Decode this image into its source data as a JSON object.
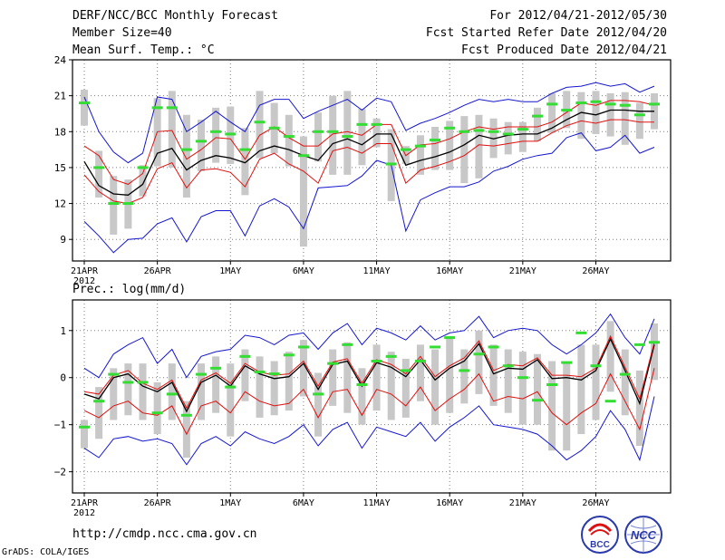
{
  "header": {
    "left": [
      "DERF/NCC/BCC Monthly Forecast",
      "Member Size=40",
      "Mean Surf. Temp.: °C"
    ],
    "right": [
      "For 2012/04/21-2012/05/30",
      "Fcst Started Refer Date 2012/04/20",
      "Fcst Produced Date 2012/04/21"
    ]
  },
  "footer": {
    "url": "http://cmdp.ncc.cma.gov.cn",
    "grads": "GrADS: COLA/IGES",
    "logo_bcc": "BCC",
    "logo_ncc": "NCC"
  },
  "colors": {
    "frame": "#000000",
    "ensemble_mean": "#000000",
    "spread_red": "#e01010",
    "envelope_blue": "#1515d0",
    "box": "#c8c8c8",
    "median": "#33dd33",
    "grid": "#808080"
  },
  "chart_data": [
    {
      "type": "line",
      "title": "Mean Surf. Temp.: °C",
      "days": 40,
      "x_tick_days": [
        1,
        6,
        11,
        16,
        21,
        26,
        31,
        36
      ],
      "x_tick_labels": [
        "21APR",
        "26APR",
        "1MAY",
        "6MAY",
        "11MAY",
        "16MAY",
        "21MAY",
        "26MAY"
      ],
      "x_sub_label": "2012",
      "ylim": [
        7.2,
        24
      ],
      "yticks": [
        9,
        12,
        15,
        18,
        21,
        24
      ],
      "ytick_labels": [
        "9",
        "12",
        "15",
        "18",
        "21",
        "24"
      ],
      "series": [
        {
          "name": "ensemble_mean",
          "values": [
            15.5,
            13.5,
            12.8,
            12.7,
            13.6,
            16.2,
            16.6,
            14.8,
            15.6,
            16.0,
            15.8,
            15.4,
            16.4,
            16.8,
            16.5,
            16.0,
            15.6,
            17.0,
            17.4,
            16.9,
            17.8,
            17.8,
            15.2,
            15.6,
            15.9,
            16.3,
            16.9,
            17.7,
            17.4,
            17.7,
            17.8,
            17.8,
            18.3,
            19.0,
            19.6,
            19.4,
            19.8,
            19.8,
            19.7,
            19.7
          ]
        },
        {
          "name": "upper_spread",
          "values": [
            16.8,
            16.0,
            14.0,
            13.6,
            14.5,
            18.0,
            18.1,
            15.7,
            16.5,
            17.5,
            17.4,
            15.7,
            17.7,
            18.4,
            17.5,
            16.8,
            16.8,
            17.8,
            18.0,
            17.7,
            18.6,
            18.6,
            16.0,
            16.9,
            17.0,
            17.4,
            18.0,
            18.4,
            18.2,
            18.4,
            18.4,
            18.4,
            18.8,
            19.6,
            20.4,
            20.2,
            20.6,
            20.6,
            20.5,
            20.2
          ]
        },
        {
          "name": "lower_spread",
          "values": [
            14.4,
            13.0,
            12.2,
            12.0,
            12.5,
            14.9,
            15.4,
            13.3,
            14.8,
            14.9,
            14.6,
            13.4,
            15.7,
            16.2,
            15.3,
            14.7,
            13.7,
            16.4,
            16.7,
            16.2,
            17.0,
            17.0,
            13.7,
            14.8,
            15.1,
            15.5,
            16.0,
            16.9,
            16.8,
            17.0,
            17.2,
            17.2,
            17.9,
            18.5,
            18.9,
            18.7,
            19.0,
            19.0,
            18.8,
            18.8
          ]
        },
        {
          "name": "max_envelope",
          "values": [
            20.9,
            18.0,
            16.3,
            15.4,
            16.2,
            20.9,
            20.7,
            18.0,
            18.8,
            19.7,
            18.8,
            18.0,
            20.2,
            20.7,
            20.7,
            19.1,
            19.7,
            20.2,
            20.7,
            19.8,
            20.8,
            20.5,
            18.1,
            18.7,
            19.1,
            19.6,
            20.2,
            20.7,
            20.5,
            20.7,
            20.5,
            20.5,
            21.2,
            21.7,
            21.8,
            22.1,
            21.8,
            22.0,
            21.3,
            21.8
          ]
        },
        {
          "name": "min_envelope",
          "values": [
            10.5,
            9.3,
            7.9,
            9.0,
            9.1,
            10.3,
            10.8,
            8.8,
            10.9,
            11.4,
            11.4,
            9.3,
            11.8,
            12.4,
            11.7,
            9.9,
            13.3,
            13.4,
            13.5,
            14.3,
            15.6,
            15.2,
            9.7,
            12.3,
            12.9,
            13.4,
            13.4,
            13.8,
            14.7,
            15.1,
            15.7,
            16.0,
            16.2,
            17.5,
            17.9,
            16.4,
            16.7,
            17.7,
            16.2,
            16.7
          ]
        },
        {
          "name": "median",
          "values": [
            20.4,
            15.0,
            12.0,
            12.0,
            15.0,
            20.0,
            20.0,
            16.5,
            17.2,
            18.0,
            17.8,
            16.5,
            18.8,
            18.3,
            17.6,
            16.0,
            18.0,
            18.0,
            17.6,
            18.6,
            18.6,
            15.3,
            16.5,
            16.8,
            17.3,
            18.3,
            18.0,
            18.1,
            18.0,
            17.8,
            18.2,
            19.3,
            20.3,
            19.8,
            20.4,
            20.5,
            20.3,
            20.2,
            19.4,
            20.3
          ]
        }
      ],
      "box_low": [
        18.5,
        12.5,
        9.4,
        9.9,
        12.6,
        15.1,
        15.0,
        12.5,
        14.7,
        15.4,
        15.3,
        12.7,
        15.8,
        16.2,
        15.1,
        8.4,
        15.5,
        14.4,
        14.4,
        15.2,
        16.7,
        12.2,
        15.3,
        14.4,
        14.8,
        14.8,
        13.7,
        14.1,
        15.8,
        16.1,
        16.3,
        17.2,
        17.9,
        18.3,
        17.4,
        17.8,
        17.6,
        16.9,
        17.4,
        18.2
      ],
      "box_high": [
        21.5,
        16.4,
        14.3,
        14.0,
        15.2,
        20.8,
        21.4,
        19.4,
        19.0,
        20.0,
        20.1,
        18.3,
        21.4,
        20.4,
        19.4,
        17.6,
        19.6,
        21.0,
        21.4,
        19.9,
        19.1,
        18.2,
        16.8,
        17.7,
        18.4,
        18.9,
        19.3,
        19.4,
        19.1,
        18.8,
        18.8,
        20.0,
        21.2,
        21.4,
        21.3,
        21.4,
        21.2,
        21.3,
        20.4,
        21.2
      ]
    },
    {
      "type": "line",
      "title": "Prec.: log(mm/d)",
      "days": 40,
      "x_tick_days": [
        1,
        6,
        11,
        16,
        21,
        26,
        31,
        36
      ],
      "x_tick_labels": [
        "21APR",
        "26APR",
        "1MAY",
        "6MAY",
        "11MAY",
        "16MAY",
        "21MAY",
        "26MAY"
      ],
      "x_sub_label": "2012",
      "ylim": [
        -2.45,
        1.65
      ],
      "yticks": [
        -2,
        -1,
        0,
        1
      ],
      "ytick_labels": [
        "−2",
        "−1",
        "0",
        "1"
      ],
      "series": [
        {
          "name": "ensemble_mean",
          "values": [
            -0.35,
            -0.45,
            0.0,
            0.08,
            -0.18,
            -0.3,
            -0.1,
            -0.72,
            -0.1,
            0.05,
            -0.18,
            0.25,
            0.08,
            -0.02,
            0.02,
            0.3,
            -0.25,
            0.28,
            0.35,
            -0.18,
            0.32,
            0.22,
            0.02,
            0.38,
            -0.05,
            0.2,
            0.35,
            0.72,
            0.08,
            0.2,
            0.18,
            0.38,
            -0.02,
            0.0,
            -0.05,
            0.15,
            0.82,
            0.15,
            -0.55,
            0.7
          ]
        },
        {
          "name": "upper_spread",
          "values": [
            -0.3,
            -0.35,
            0.05,
            0.15,
            -0.12,
            -0.25,
            -0.05,
            -0.65,
            -0.05,
            0.1,
            -0.12,
            0.3,
            0.12,
            0.05,
            0.08,
            0.35,
            -0.18,
            0.33,
            0.4,
            -0.12,
            0.38,
            0.28,
            0.08,
            0.45,
            0.02,
            0.25,
            0.42,
            0.78,
            0.15,
            0.28,
            0.25,
            0.42,
            0.05,
            0.05,
            0.02,
            0.2,
            0.88,
            0.22,
            -0.45,
            0.75
          ]
        },
        {
          "name": "lower_spread",
          "values": [
            -0.7,
            -0.85,
            -0.6,
            -0.5,
            -0.75,
            -0.8,
            -0.6,
            -1.2,
            -0.6,
            -0.5,
            -0.75,
            -0.3,
            -0.5,
            -0.6,
            -0.55,
            -0.25,
            -0.85,
            -0.3,
            -0.25,
            -0.8,
            -0.25,
            -0.35,
            -0.6,
            -0.2,
            -0.7,
            -0.45,
            -0.25,
            0.08,
            -0.5,
            -0.4,
            -0.45,
            -0.3,
            -0.75,
            -1.0,
            -0.75,
            -0.55,
            0.08,
            -0.5,
            -1.1,
            0.2
          ]
        },
        {
          "name": "max_envelope",
          "values": [
            0.2,
            0.0,
            0.5,
            0.7,
            0.85,
            0.3,
            0.6,
            0.0,
            0.45,
            0.55,
            0.6,
            0.9,
            0.85,
            0.7,
            0.9,
            0.95,
            0.6,
            0.95,
            1.15,
            0.7,
            1.05,
            0.95,
            0.8,
            1.1,
            0.8,
            0.95,
            1.0,
            1.3,
            0.85,
            1.0,
            1.05,
            1.0,
            0.7,
            0.5,
            0.7,
            0.95,
            1.35,
            0.85,
            0.5,
            1.25
          ]
        },
        {
          "name": "min_envelope",
          "values": [
            -1.5,
            -1.7,
            -1.3,
            -1.25,
            -1.35,
            -1.3,
            -1.4,
            -1.85,
            -1.4,
            -1.25,
            -1.45,
            -1.15,
            -1.3,
            -1.4,
            -1.25,
            -1.0,
            -1.45,
            -1.1,
            -0.95,
            -1.5,
            -1.05,
            -1.15,
            -1.25,
            -0.95,
            -1.35,
            -1.05,
            -0.85,
            -0.6,
            -1.0,
            -1.05,
            -1.1,
            -1.2,
            -1.45,
            -1.75,
            -1.55,
            -1.25,
            -0.7,
            -1.1,
            -1.75,
            -0.4
          ]
        },
        {
          "name": "median",
          "values": [
            -1.05,
            -0.5,
            0.07,
            -0.1,
            -0.1,
            -0.75,
            -0.35,
            -0.8,
            0.07,
            0.2,
            -0.2,
            0.45,
            0.12,
            0.08,
            0.48,
            0.65,
            -0.35,
            0.3,
            0.7,
            -0.15,
            0.35,
            0.45,
            0.15,
            0.35,
            0.65,
            0.85,
            0.15,
            0.5,
            0.65,
            0.25,
            0.0,
            -0.48,
            -0.15,
            0.32,
            0.95,
            0.25,
            -0.5,
            0.07,
            0.7,
            0.75
          ]
        }
      ],
      "box_low": [
        -1.5,
        -1.3,
        -0.9,
        -0.8,
        -0.9,
        -1.2,
        -0.9,
        -1.7,
        -0.9,
        -0.75,
        -1.25,
        -0.5,
        -0.85,
        -0.8,
        -0.7,
        -0.4,
        -1.25,
        -0.6,
        -0.75,
        -1.0,
        -0.7,
        -0.9,
        -0.85,
        -0.5,
        -1.0,
        -0.75,
        -0.55,
        -0.35,
        -0.6,
        -0.75,
        -1.0,
        -1.0,
        -1.55,
        -1.55,
        -1.2,
        -0.9,
        -0.3,
        -0.8,
        -1.45,
        -0.05
      ],
      "box_high": [
        -0.9,
        -0.2,
        0.2,
        0.3,
        0.3,
        -0.1,
        0.3,
        -0.5,
        0.3,
        0.45,
        0.3,
        0.6,
        0.45,
        0.35,
        0.55,
        0.8,
        0.1,
        0.6,
        0.75,
        0.2,
        0.7,
        0.55,
        0.4,
        0.7,
        0.6,
        0.85,
        0.6,
        1.0,
        0.7,
        0.6,
        0.55,
        0.5,
        0.35,
        0.3,
        0.7,
        0.7,
        1.2,
        0.6,
        0.15,
        1.15
      ]
    }
  ]
}
